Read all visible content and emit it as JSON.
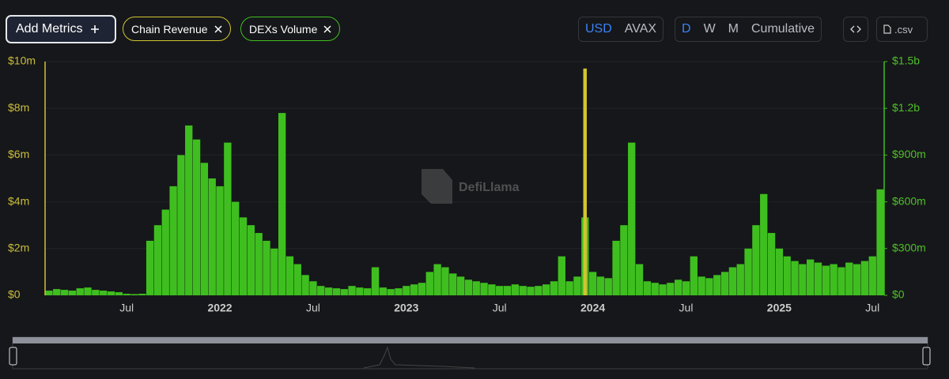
{
  "toolbar": {
    "add_metrics": "Add Metrics",
    "denominations": [
      "USD",
      "AVAX"
    ],
    "periods": [
      "D",
      "W",
      "M",
      "Cumulative"
    ],
    "csv": ".csv",
    "watermark": "DefiLlama"
  },
  "chart_data": {
    "type": "bar",
    "categories": [
      null,
      null,
      null,
      null,
      null,
      null,
      null,
      null,
      null,
      null,
      "Jul",
      null,
      null,
      null,
      null,
      null,
      null,
      null,
      null,
      null,
      null,
      null,
      "2022",
      null,
      null,
      null,
      null,
      null,
      null,
      null,
      null,
      null,
      null,
      null,
      "Jul",
      null,
      null,
      null,
      null,
      null,
      null,
      null,
      null,
      null,
      null,
      null,
      "2023",
      null,
      null,
      null,
      null,
      null,
      null,
      null,
      null,
      null,
      null,
      null,
      "Jul",
      null,
      null,
      null,
      null,
      null,
      null,
      null,
      null,
      null,
      null,
      null,
      "2024",
      null,
      null,
      null,
      null,
      null,
      null,
      null,
      null,
      null,
      null,
      null,
      "Jul",
      null,
      null,
      null,
      null,
      null,
      null,
      null,
      null,
      null,
      null,
      null,
      "2025",
      null,
      null,
      null,
      null,
      null,
      null,
      null,
      null,
      null,
      null,
      null,
      "Jul",
      null
    ],
    "series": [
      {
        "name": "Chain Revenue",
        "color": "#d1c431",
        "values": [
          150000,
          120000,
          100000,
          110000,
          130000,
          120000,
          100000,
          90000,
          80000,
          70000,
          40000,
          30000,
          40000,
          500000,
          600000,
          700000,
          800000,
          900000,
          1000000,
          900000,
          800000,
          700000,
          700000,
          800000,
          600000,
          500000,
          450000,
          400000,
          350000,
          300000,
          500000,
          250000,
          200000,
          150000,
          120000,
          100000,
          90000,
          90000,
          80000,
          90000,
          80000,
          80000,
          150000,
          80000,
          70000,
          70000,
          90000,
          100000,
          110000,
          150000,
          180000,
          160000,
          140000,
          120000,
          110000,
          100000,
          90000,
          80000,
          80000,
          80000,
          90000,
          80000,
          70000,
          80000,
          90000,
          100000,
          200000,
          120000,
          150000,
          9700000,
          300000,
          200000,
          150000,
          250000,
          300000,
          500000,
          200000,
          100000,
          90000,
          80000,
          90000,
          100000,
          90000,
          150000,
          100000,
          100000,
          110000,
          120000,
          140000,
          150000,
          200000,
          300000,
          400000,
          300000,
          250000,
          200000,
          180000,
          170000,
          180000,
          170000,
          160000,
          170000,
          150000,
          170000,
          160000,
          180000,
          200000,
          400000
        ]
      },
      {
        "name": "DEXs Volume",
        "color": "#3fbf1f",
        "axis": "y2",
        "values": [
          30000000,
          40000000,
          35000000,
          30000000,
          45000000,
          50000000,
          35000000,
          30000000,
          25000000,
          20000000,
          10000000,
          8000000,
          10000000,
          350000000,
          450000000,
          550000000,
          700000000,
          900000000,
          1090000000,
          1000000000,
          850000000,
          750000000,
          700000000,
          980000000,
          600000000,
          500000000,
          450000000,
          400000000,
          350000000,
          300000000,
          1170000000,
          250000000,
          200000000,
          130000000,
          90000000,
          60000000,
          50000000,
          45000000,
          40000000,
          60000000,
          50000000,
          45000000,
          180000000,
          50000000,
          40000000,
          45000000,
          60000000,
          70000000,
          80000000,
          150000000,
          200000000,
          180000000,
          140000000,
          120000000,
          100000000,
          90000000,
          80000000,
          70000000,
          60000000,
          60000000,
          70000000,
          60000000,
          55000000,
          60000000,
          70000000,
          90000000,
          250000000,
          90000000,
          120000000,
          500000000,
          150000000,
          120000000,
          110000000,
          350000000,
          450000000,
          980000000,
          200000000,
          90000000,
          80000000,
          70000000,
          80000000,
          100000000,
          90000000,
          250000000,
          120000000,
          110000000,
          130000000,
          150000000,
          180000000,
          200000000,
          300000000,
          450000000,
          650000000,
          400000000,
          300000000,
          250000000,
          220000000,
          200000000,
          230000000,
          210000000,
          190000000,
          200000000,
          180000000,
          210000000,
          200000000,
          220000000,
          250000000,
          680000000
        ]
      }
    ],
    "ylim": [
      0,
      10000000
    ],
    "yticks": [
      {
        "value": 0,
        "label": "$0"
      },
      {
        "value": 2000000,
        "label": "$2m"
      },
      {
        "value": 4000000,
        "label": "$4m"
      },
      {
        "value": 6000000,
        "label": "$6m"
      },
      {
        "value": 8000000,
        "label": "$8m"
      },
      {
        "value": 10000000,
        "label": "$10m"
      }
    ],
    "y2lim": [
      0,
      1500000000
    ],
    "y2ticks": [
      {
        "value": 0,
        "label": "$0"
      },
      {
        "value": 300000000,
        "label": "$300m"
      },
      {
        "value": 600000000,
        "label": "$600m"
      },
      {
        "value": 900000000,
        "label": "$900m"
      },
      {
        "value": 1200000000,
        "label": "$1.2b"
      },
      {
        "value": 1500000000,
        "label": "$1.5b"
      }
    ],
    "grid": true
  }
}
